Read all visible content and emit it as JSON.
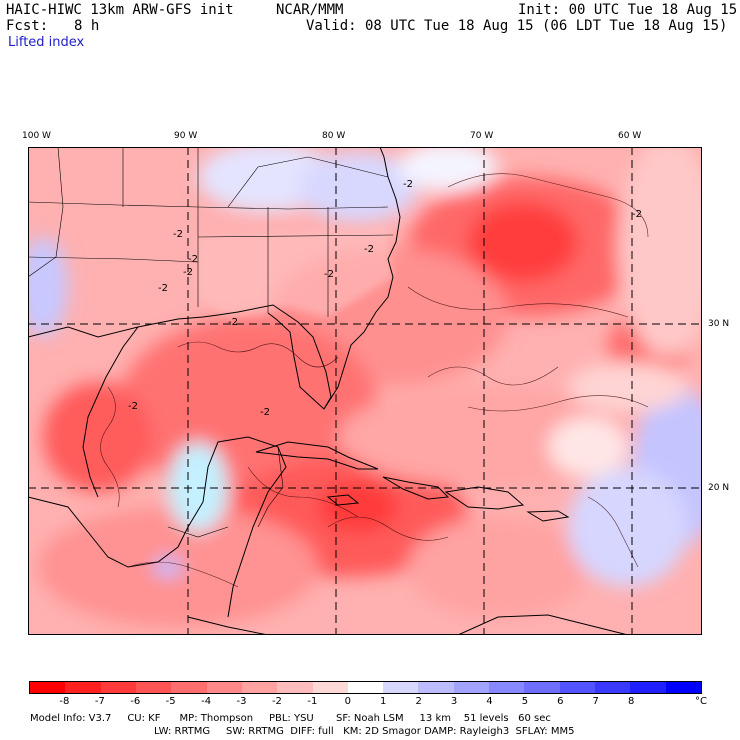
{
  "header": {
    "model": "HAIC-HIWC 13km ARW-GFS init",
    "org": "NCAR/MMM",
    "init": "Init: 00 UTC Tue 18 Aug 15",
    "fcst_label": "Fcst:",
    "fcst_value": "8 h",
    "valid": "Valid: 08 UTC Tue 18 Aug 15 (06 LDT Tue 18 Aug 15)",
    "field": "Lifted index"
  },
  "axes": {
    "lon_labels": [
      "100 W",
      "90 W",
      "80 W",
      "70 W",
      "60 W"
    ],
    "lat_labels": [
      "30 N",
      "20 N"
    ]
  },
  "colorbar": {
    "labels": [
      "-8",
      "-7",
      "-6",
      "-5",
      "-4",
      "-3",
      "-2",
      "-1",
      "0",
      "1",
      "2",
      "3",
      "4",
      "5",
      "6",
      "7",
      "8"
    ],
    "unit": "°C",
    "colors": [
      "#ff0000",
      "#ff2020",
      "#ff3a3a",
      "#ff5454",
      "#ff6e6e",
      "#ff8888",
      "#ffa2a2",
      "#ffbcbc",
      "#ffd8d8",
      "#ffffff",
      "#d8d8ff",
      "#bcbcff",
      "#a2a2ff",
      "#8888ff",
      "#6e6eff",
      "#5454ff",
      "#3a3aff",
      "#2020ff",
      "#0000ff"
    ]
  },
  "footer": {
    "line1": "Model Info: V3.7     CU: KF      MP: Thompson     PBL: YSU       SF: Noah LSM     13 km    51 levels   60 sec",
    "line2": "LW: RRTMG     SW: RRTMG  DIFF: full   KM: 2D Smagor DAMP: Rayleigh3  SFLAY: MM5"
  },
  "contour_labels": [
    "-2",
    "-2",
    "-2",
    "-2",
    "-2",
    "-2",
    "-2",
    "-2",
    "-2",
    "-2",
    "-2"
  ]
}
